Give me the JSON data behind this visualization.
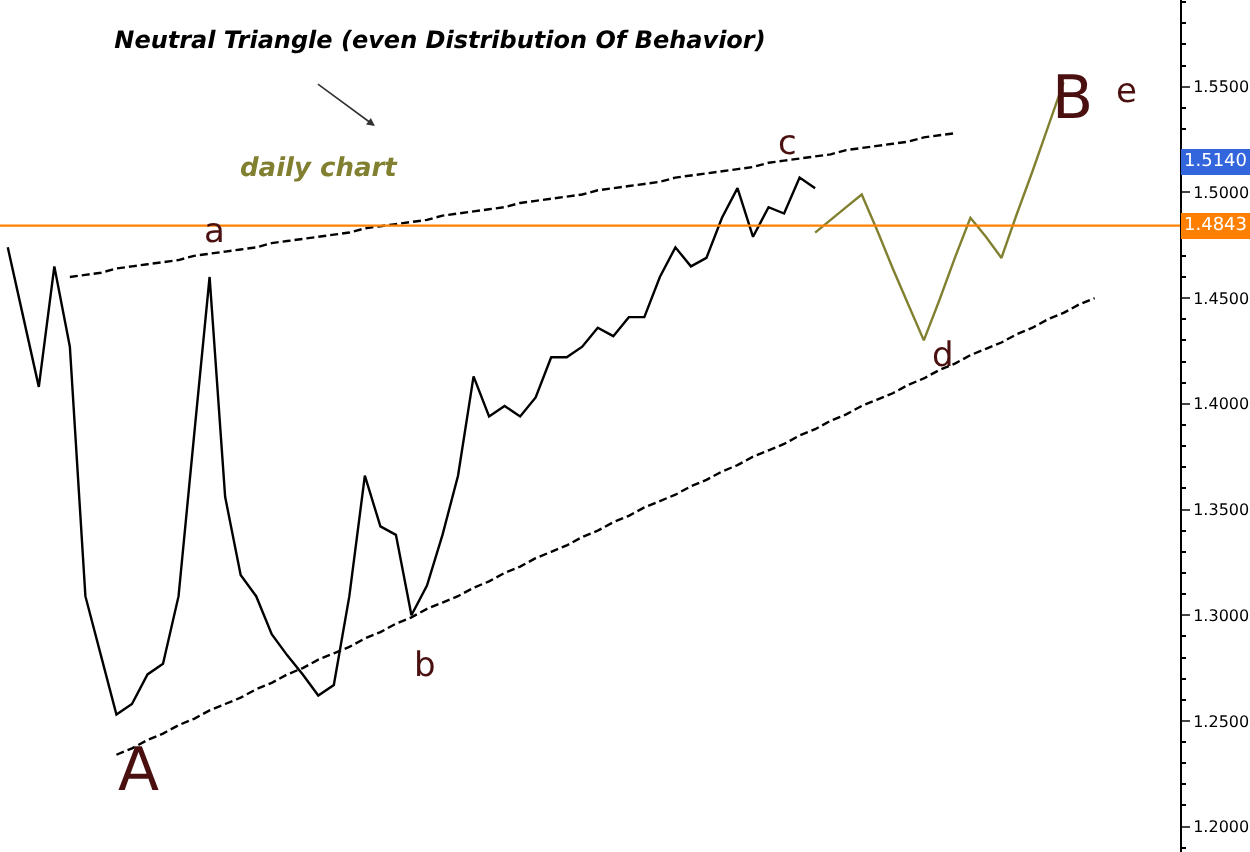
{
  "chart_data": {
    "type": "line",
    "title": "Neutral Triangle (even Distribution Of Behavior)",
    "categories": [
      null,
      null,
      null,
      null,
      null,
      null,
      null,
      null,
      null,
      null,
      null,
      null,
      null,
      null,
      null,
      null,
      null,
      null,
      null,
      null,
      null,
      null,
      null,
      null,
      null,
      null,
      null,
      null,
      null,
      null,
      null,
      null,
      null,
      null,
      null,
      null,
      null,
      null,
      null,
      null,
      null,
      null,
      null,
      null,
      null,
      null,
      null,
      null,
      null,
      null,
      null,
      null,
      null,
      null,
      null,
      null,
      null,
      null,
      null,
      null,
      null,
      null,
      null,
      null,
      null,
      null,
      null,
      null,
      null,
      null,
      null,
      null,
      null,
      null,
      null,
      null
    ],
    "series": [
      {
        "color": "#000000",
        "line_style": "solid",
        "values": [
          1.474,
          1.441,
          1.408,
          1.465,
          1.427,
          1.309,
          1.281,
          1.253,
          1.258,
          1.272,
          1.277,
          1.309,
          1.385,
          1.46,
          1.356,
          1.319,
          1.309,
          1.291,
          1.281,
          1.272,
          1.262,
          1.267,
          1.309,
          1.366,
          1.342,
          1.338,
          1.3,
          1.314,
          1.338,
          1.366,
          1.413,
          1.394,
          1.399,
          1.394,
          1.403,
          1.422,
          1.422,
          1.427,
          1.436,
          1.432,
          1.441,
          1.441,
          1.46,
          1.474,
          1.465,
          1.469,
          1.488,
          1.502,
          1.479,
          1.493,
          1.49,
          1.507,
          1.502,
          null,
          null,
          null,
          null,
          null,
          null,
          null,
          null,
          null,
          null,
          null,
          null,
          null,
          null,
          null,
          null,
          null,
          null,
          null,
          null,
          null,
          null,
          null
        ]
      },
      {
        "color": "#808030",
        "line_style": "solid",
        "values": [
          null,
          null,
          null,
          null,
          null,
          null,
          null,
          null,
          null,
          null,
          null,
          null,
          null,
          null,
          null,
          null,
          null,
          null,
          null,
          null,
          null,
          null,
          null,
          null,
          null,
          null,
          null,
          null,
          null,
          null,
          null,
          null,
          null,
          null,
          null,
          null,
          null,
          null,
          null,
          null,
          null,
          null,
          null,
          null,
          null,
          null,
          null,
          null,
          null,
          null,
          null,
          null,
          1.481,
          1.487,
          1.493,
          1.499,
          1.482,
          1.464,
          1.447,
          1.43,
          1.449,
          1.469,
          1.488,
          1.479,
          1.469,
          1.49,
          1.51,
          1.531,
          1.552,
          null,
          null,
          null,
          null,
          null,
          null,
          null
        ]
      },
      {
        "color": "#000000",
        "line_style": "dashed",
        "values": [
          null,
          null,
          null,
          null,
          1.46,
          1.461,
          1.462,
          1.464,
          1.465,
          1.466,
          1.467,
          1.468,
          1.47,
          1.471,
          1.472,
          1.473,
          1.474,
          1.476,
          1.477,
          1.478,
          1.479,
          1.48,
          1.481,
          1.483,
          1.484,
          1.485,
          1.486,
          1.487,
          1.489,
          1.49,
          1.491,
          1.492,
          1.493,
          1.495,
          1.496,
          1.497,
          1.498,
          1.499,
          1.501,
          1.502,
          1.503,
          1.504,
          1.505,
          1.507,
          1.508,
          1.509,
          1.51,
          1.511,
          1.512,
          1.514,
          1.515,
          1.516,
          1.517,
          1.518,
          1.52,
          1.521,
          1.522,
          1.523,
          1.524,
          1.526,
          1.527,
          1.528,
          null,
          null,
          null,
          null,
          null,
          null,
          null,
          null,
          null,
          null,
          null,
          null,
          null,
          null
        ]
      },
      {
        "color": "#000000",
        "line_style": "dashed",
        "values": [
          null,
          null,
          null,
          null,
          null,
          null,
          null,
          1.234,
          1.237,
          1.241,
          1.244,
          1.248,
          1.251,
          1.255,
          1.258,
          1.261,
          1.265,
          1.268,
          1.272,
          1.275,
          1.279,
          1.282,
          1.285,
          1.289,
          1.292,
          1.296,
          1.299,
          1.303,
          1.306,
          1.309,
          1.313,
          1.316,
          1.32,
          1.323,
          1.327,
          1.33,
          1.333,
          1.337,
          1.34,
          1.344,
          1.347,
          1.351,
          1.354,
          1.357,
          1.361,
          1.364,
          1.368,
          1.371,
          1.375,
          1.378,
          1.381,
          1.385,
          1.388,
          1.392,
          1.395,
          1.399,
          1.402,
          1.405,
          1.409,
          1.412,
          1.416,
          1.419,
          1.423,
          1.426,
          1.429,
          1.433,
          1.436,
          1.44,
          1.443,
          1.447,
          1.45,
          null,
          null,
          null,
          null,
          null
        ]
      }
    ],
    "ylim": [
      1.188,
      1.591
    ],
    "yticks": [
      {
        "value": 1.2,
        "label": "1.2000"
      },
      {
        "value": 1.25,
        "label": "1.2500"
      },
      {
        "value": 1.3,
        "label": "1.3000"
      },
      {
        "value": 1.35,
        "label": "1.3500"
      },
      {
        "value": 1.4,
        "label": "1.4000"
      },
      {
        "value": 1.45,
        "label": "1.4500"
      },
      {
        "value": 1.5,
        "label": "1.5000"
      },
      {
        "value": 1.55,
        "label": "1.5500"
      }
    ],
    "ref_lines": [
      {
        "axis": "y",
        "value": 1.4843,
        "label": "1.4843",
        "color": "#ff8000"
      }
    ],
    "annotations": [
      "daily chart",
      "a",
      "A",
      "b",
      "c",
      "d",
      "B",
      "e",
      {
        "text": "1.5140",
        "y": 1.514
      }
    ],
    "tick_labels": "y",
    "marker": "none"
  }
}
